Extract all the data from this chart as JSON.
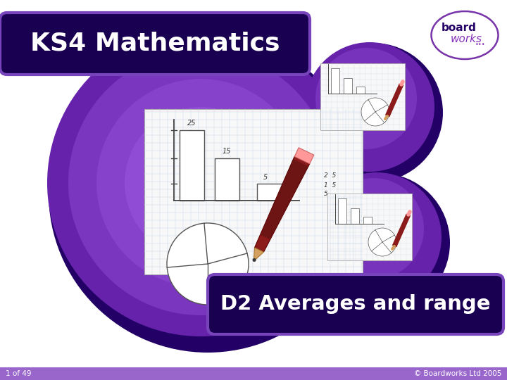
{
  "bg_color": "#ffffff",
  "footer_color": "#7744aa",
  "footer_text_left": "1 of 49",
  "footer_text_right": "© Boardworks Ltd 2005",
  "title_text": "KS4 Mathematics",
  "subtitle_text": "D2 Averages and range",
  "title_bg": "#1a0050",
  "title_border": "#7744bb",
  "subtitle_bg": "#1a0050",
  "subtitle_border": "#7744bb",
  "large_circle_color_outer": "#220066",
  "large_circle_color_inner": "#8833cc",
  "small_circle_color_outer": "#220066",
  "small_circle_color_inner": "#7722bb",
  "title_text_color": "#ffffff",
  "subtitle_text_color": "#ffffff",
  "footer_text_color": "#ffffff",
  "logo_border_color": "#7733aa",
  "logo_text_board_color": "#220066",
  "logo_text_works_color": "#8833bb"
}
